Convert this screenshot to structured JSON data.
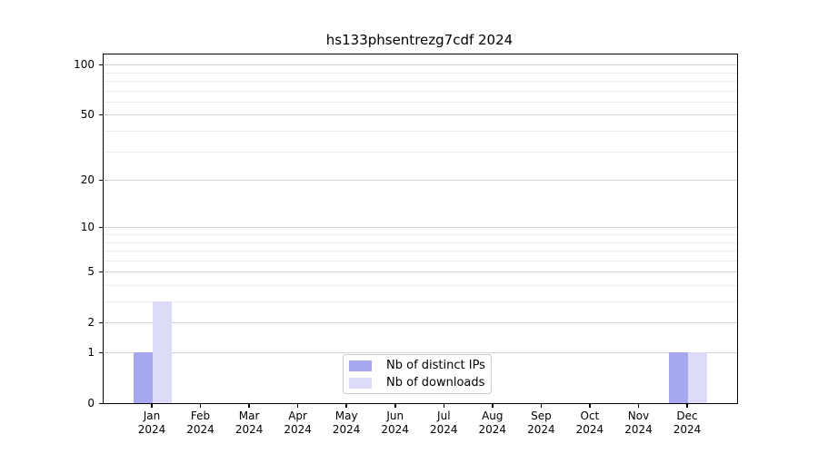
{
  "title": "hs133phsentrezg7cdf 2024",
  "chart_data": {
    "type": "bar",
    "title": "hs133phsentrezg7cdf 2024",
    "categories": [
      "Jan 2024",
      "Feb 2024",
      "Mar 2024",
      "Apr 2024",
      "May 2024",
      "Jun 2024",
      "Jul 2024",
      "Aug 2024",
      "Sep 2024",
      "Oct 2024",
      "Nov 2024",
      "Dec 2024"
    ],
    "series": [
      {
        "name": "Nb of distinct IPs",
        "color": "#a7a7f0",
        "values": [
          1,
          0,
          0,
          0,
          0,
          0,
          0,
          0,
          0,
          0,
          0,
          1
        ]
      },
      {
        "name": "Nb of downloads",
        "color": "#dcdcf8",
        "values": [
          3,
          0,
          0,
          0,
          0,
          0,
          0,
          0,
          0,
          0,
          0,
          1
        ]
      }
    ],
    "xlabel": "",
    "ylabel": "",
    "yscale": "log1p",
    "ylim": [
      0,
      115
    ],
    "yticks": [
      0,
      1,
      2,
      5,
      10,
      20,
      50,
      100
    ],
    "ytick_labels": [
      "0",
      "1",
      "2",
      "5",
      "10",
      "20",
      "50",
      "100"
    ],
    "minor_yticks": [
      3,
      4,
      6,
      7,
      8,
      9,
      30,
      40,
      60,
      70,
      80,
      90
    ],
    "grid": "horizontal",
    "legend_position": "lower center"
  },
  "legend": {
    "items": [
      {
        "label": "Nb of distinct IPs",
        "color": "#a7a7f0"
      },
      {
        "label": "Nb of downloads",
        "color": "#dcdcf8"
      }
    ]
  },
  "colors": {
    "grid_major": "#d2d2d2",
    "grid_minor": "#ededed",
    "axis": "#000000",
    "background": "#ffffff"
  }
}
